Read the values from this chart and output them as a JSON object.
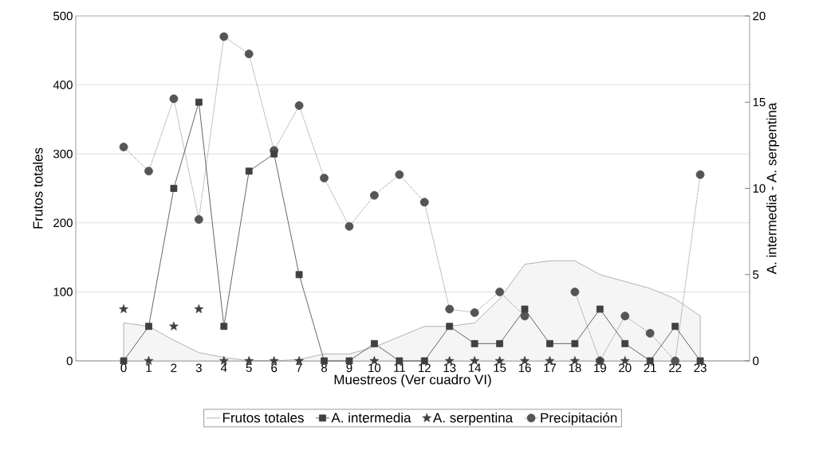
{
  "chart_data": {
    "type": "line",
    "xlabel": "Muestreos (Ver cuadro VI)",
    "ylabel": "Frutos totales",
    "y2label": "A. intermedia - A. serpentina",
    "categories": [
      "0",
      "1",
      "2",
      "3",
      "4",
      "5",
      "6",
      "7",
      "8",
      "9",
      "10",
      "11",
      "12",
      "13",
      "14",
      "15",
      "16",
      "17",
      "18",
      "19",
      "20",
      "21",
      "22",
      "23"
    ],
    "ylim": [
      0,
      500
    ],
    "yticks": [
      0,
      100,
      200,
      300,
      400,
      500
    ],
    "y2lim": [
      0,
      20
    ],
    "y2ticks": [
      0,
      5,
      10,
      15,
      20
    ],
    "grid": "y",
    "legend": "bottom",
    "series": [
      {
        "name": "Frutos totales",
        "type": "area",
        "color": "#a0a0a0",
        "values": [
          55,
          50,
          30,
          12,
          5,
          0,
          0,
          2,
          10,
          10,
          20,
          35,
          50,
          50,
          55,
          90,
          140,
          145,
          145,
          125,
          115,
          105,
          90,
          65
        ]
      },
      {
        "name": "A. intermedia",
        "type": "line",
        "axis": "y2",
        "marker": "square",
        "line_style": "solid",
        "color": "#404040",
        "values": [
          0,
          2,
          10,
          15,
          2,
          11,
          12,
          5,
          0,
          0,
          1,
          0,
          0,
          2,
          1,
          1,
          3,
          1,
          1,
          3,
          1,
          0,
          2,
          0
        ]
      },
      {
        "name": "A. serpentina",
        "type": "scatter",
        "axis": "y2",
        "marker": "star",
        "color": "#404040",
        "values": [
          3,
          0,
          2,
          3,
          0,
          0,
          0,
          0,
          null,
          null,
          0,
          null,
          null,
          0,
          0,
          0,
          0,
          0,
          0,
          0,
          0,
          null,
          null,
          null
        ]
      },
      {
        "name": "Precipitación",
        "type": "line",
        "marker": "circle",
        "line_style": "dotted",
        "color": "#555555",
        "values": [
          310,
          275,
          380,
          205,
          470,
          445,
          305,
          370,
          265,
          195,
          240,
          270,
          230,
          75,
          70,
          100,
          65,
          null,
          100,
          0,
          65,
          40,
          0,
          270
        ]
      }
    ]
  }
}
